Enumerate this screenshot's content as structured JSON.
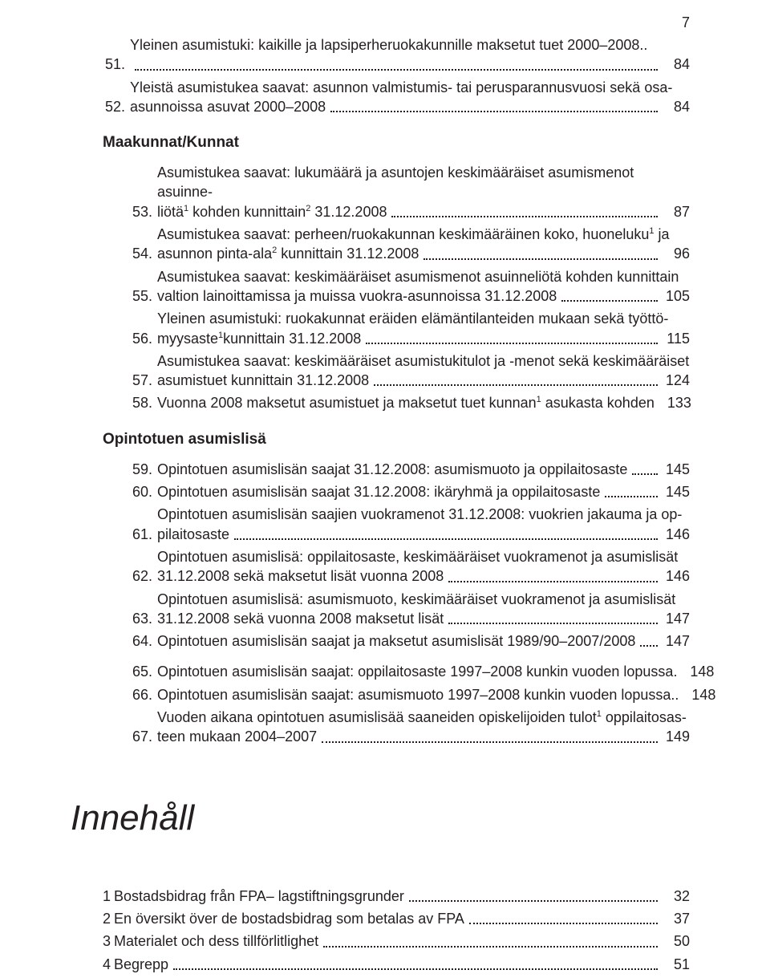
{
  "pageNumber": "7",
  "sectionA": [
    {
      "n": "51.",
      "lines": [
        "Yleinen asumistuki: kaikille ja lapsiperheruokakunnille maksetut tuet 2000–2008.."
      ],
      "last": "",
      "pg": "84"
    },
    {
      "n": "52.",
      "lines": [
        "Yleistä asumistukea saavat: asunnon valmistumis- tai perusparannusvuosi sekä osa-"
      ],
      "last": "asunnoissa asuvat 2000–2008",
      "pg": "84"
    }
  ],
  "headingB": "Maakunnat/Kunnat",
  "sectionB": [
    {
      "n": "53.",
      "lines": [
        "Asumistukea saavat: lukumäärä ja asuntojen keskimääräiset asumismenot asuinne-"
      ],
      "last": "liötä¹ kohden kunnittain² 31.12.2008",
      "pg": "87"
    },
    {
      "n": "54.",
      "lines": [
        "Asumistukea saavat: perheen/ruokakunnan keskimääräinen koko, huoneluku¹ ja"
      ],
      "last": "asunnon pinta-ala²  kunnittain 31.12.2008",
      "pg": "96"
    },
    {
      "n": "55.",
      "lines": [
        "Asumistukea saavat: keskimääräiset asumismenot asuinneliötä kohden kunnittain"
      ],
      "last": "valtion lainoittamissa ja muissa vuokra-asunnoissa 31.12.2008",
      "pg": "105"
    },
    {
      "n": "56.",
      "lines": [
        "Yleinen asumistuki: ruokakunnat eräiden elämäntilanteiden mukaan sekä työttö-"
      ],
      "last": "myysaste¹kunnittain 31.12.2008",
      "pg": "115"
    },
    {
      "n": "57.",
      "lines": [
        "Asumistukea saavat: keskimääräiset asumistukitulot ja -menot sekä keskimääräiset"
      ],
      "last": "asumistuet kunnittain 31.12.2008",
      "pg": "124"
    },
    {
      "n": "58.",
      "lines": [],
      "last": "Vuonna 2008 maksetut asumistuet ja maksetut tuet kunnan¹ asukasta kohden",
      "pg": "133"
    }
  ],
  "headingC": "Opintotuen asumislisä",
  "sectionC": [
    {
      "n": "59.",
      "lines": [],
      "last": "Opintotuen asumislisän saajat 31.12.2008: asumismuoto ja oppilaitosaste",
      "pg": "145"
    },
    {
      "n": "60.",
      "lines": [],
      "last": "Opintotuen asumislisän saajat 31.12.2008: ikäryhmä ja oppilaitosaste",
      "pg": "145"
    },
    {
      "n": "61.",
      "lines": [
        "Opintotuen asumislisän saajien vuokramenot 31.12.2008: vuokrien jakauma ja op-"
      ],
      "last": "pilaitosaste",
      "pg": "146"
    },
    {
      "n": "62.",
      "lines": [
        "Opintotuen asumislisä: oppilaitosaste, keskimääräiset vuokramenot ja asumislisät"
      ],
      "last": "31.12.2008 sekä maksetut lisät vuonna 2008",
      "pg": "146"
    },
    {
      "n": "63.",
      "lines": [
        "Opintotuen asumislisä: asumismuoto, keskimääräiset vuokramenot ja asumislisät"
      ],
      "last": "31.12.2008 sekä vuonna 2008 maksetut lisät",
      "pg": "147"
    },
    {
      "n": "64.",
      "lines": [],
      "last": "Opintotuen asumislisän saajat ja maksetut asumislisät 1989/90–2007/2008",
      "pg": "147"
    }
  ],
  "sectionD": [
    {
      "n": "65.",
      "lines": [],
      "last": "Opintotuen asumislisän saajat: oppilaitosaste 1997–2008 kunkin vuoden lopussa.",
      "pg": "148"
    },
    {
      "n": "66.",
      "lines": [],
      "last": "Opintotuen asumislisän saajat: asumismuoto 1997–2008 kunkin vuoden lopussa..",
      "pg": "148"
    },
    {
      "n": "67.",
      "lines": [
        "Vuoden aikana opintotuen asumislisää saaneiden opiskelijoiden tulot¹ oppilaitosas-"
      ],
      "last": "teen mukaan 2004–2007",
      "pg": "149"
    }
  ],
  "mainHeading": "Innehåll",
  "sectionE": [
    {
      "n": "1",
      "lines": [],
      "last": "Bostadsbidrag från FPA– lagstiftningsgrunder",
      "pg": "32"
    },
    {
      "n": "2",
      "lines": [],
      "last": "En översikt över de bostadsbidrag som betalas av FPA",
      "pg": "37"
    },
    {
      "n": "3",
      "lines": [],
      "last": "Materialet och dess tillförlitlighet",
      "pg": "50"
    },
    {
      "n": "4",
      "lines": [],
      "last": "Begrepp",
      "pg": "51"
    }
  ]
}
